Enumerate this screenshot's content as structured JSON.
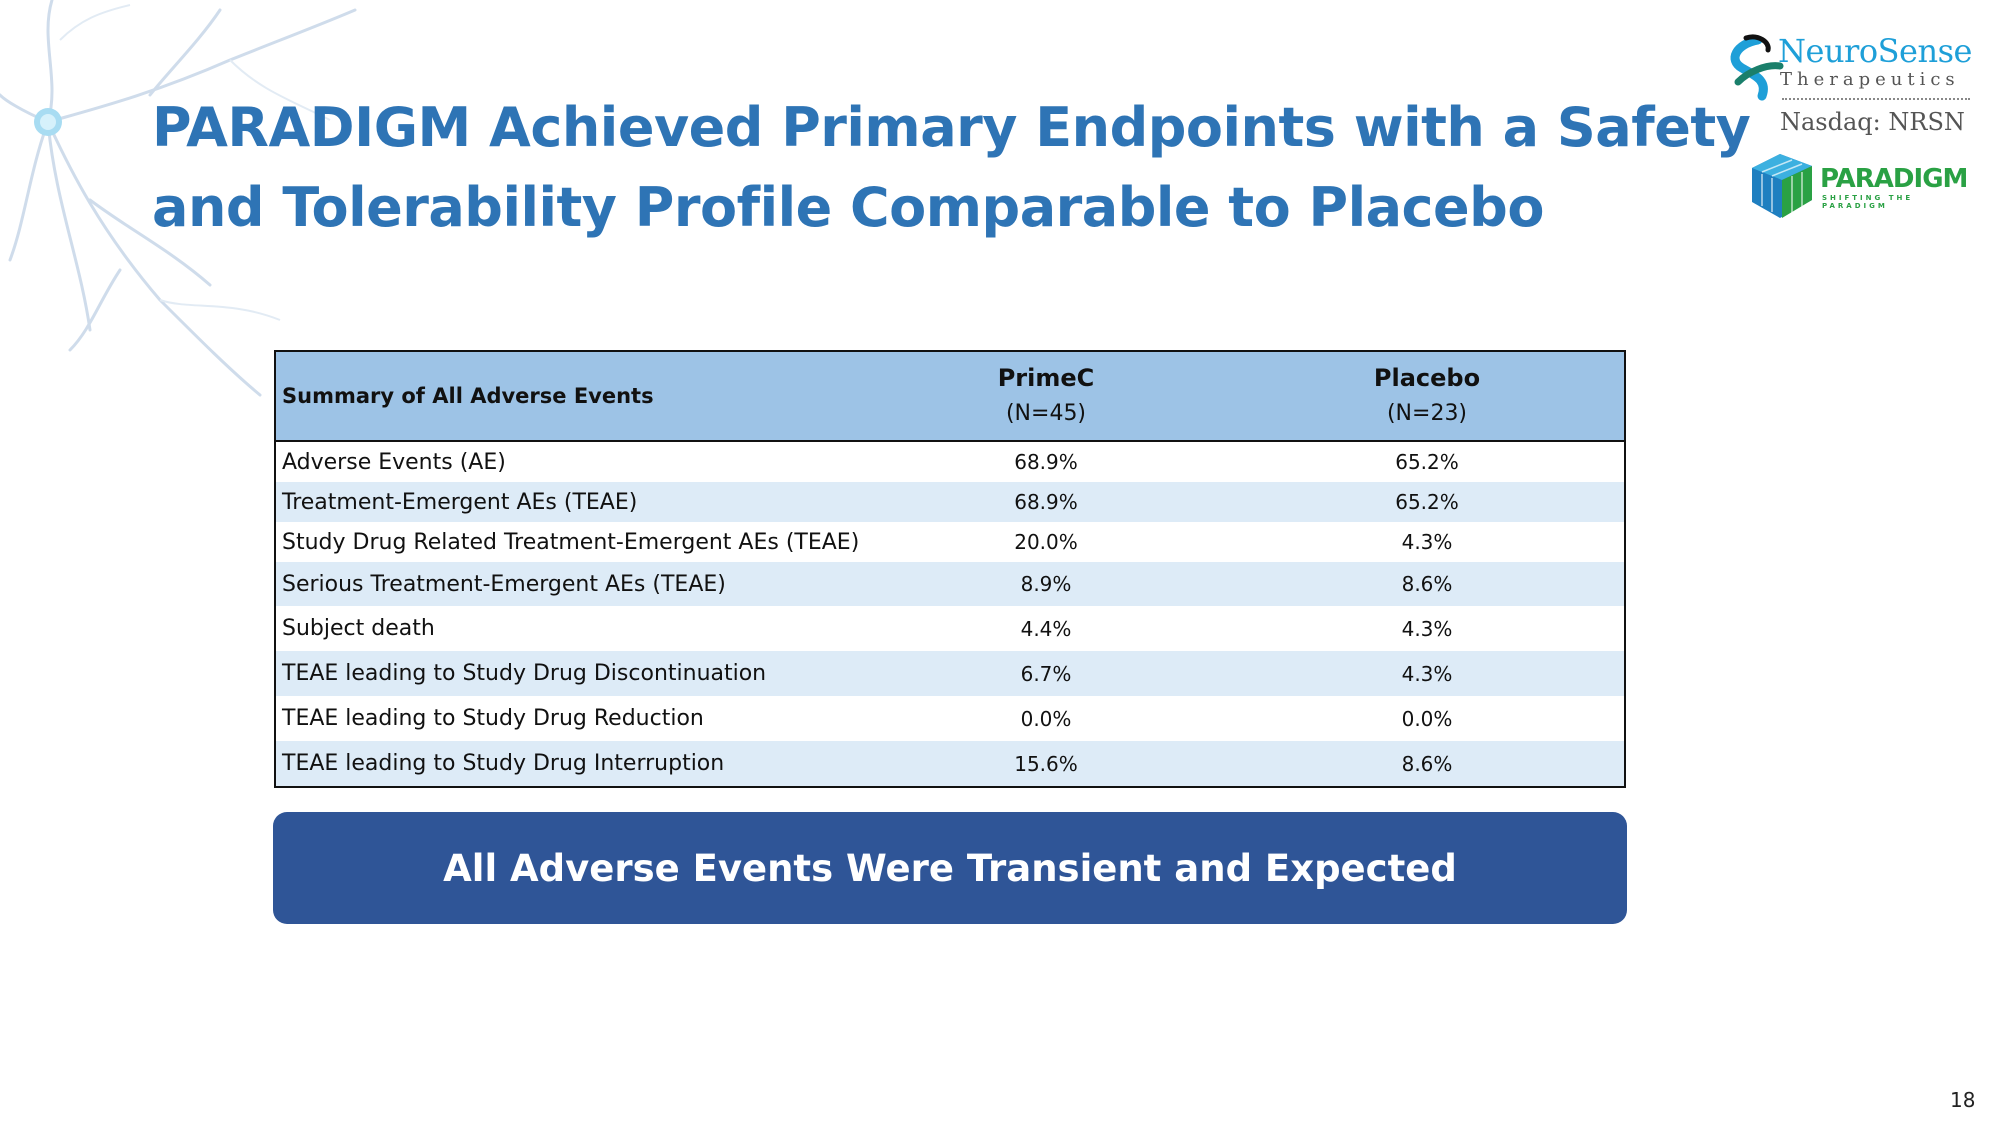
{
  "slide": {
    "title_lines": [
      "PARADIGM Achieved Primary Endpoints with a Safety",
      "and Tolerability Profile Comparable to Placebo"
    ],
    "page_number": "18",
    "colors": {
      "title": "#2e74b5",
      "table_header": "#9dc3e6",
      "table_alt_row": "#ddebf7",
      "banner": "#2f5597"
    }
  },
  "logos": {
    "neurosense_name": "NeuroSense",
    "neurosense_sub": "Therapeutics",
    "nasdaq": "Nasdaq: NRSN",
    "paradigm_name": "PARADIGM",
    "paradigm_tagline": "SHIFTING THE PARADIGM"
  },
  "table": {
    "header_label": "Summary of All Adverse Events",
    "columns": [
      {
        "name": "PrimeC",
        "n": "(N=45)"
      },
      {
        "name": "Placebo",
        "n": "(N=23)"
      }
    ],
    "rows": [
      {
        "label": "Adverse Events (AE)",
        "primec": "68.9%",
        "placebo": "65.2%"
      },
      {
        "label": "Treatment-Emergent AEs (TEAE)",
        "primec": "68.9%",
        "placebo": "65.2%"
      },
      {
        "label": "Study Drug Related Treatment-Emergent AEs (TEAE)",
        "primec": "20.0%",
        "placebo": "4.3%"
      },
      {
        "label": "Serious Treatment-Emergent AEs (TEAE)",
        "primec": "8.9%",
        "placebo": "8.6%"
      },
      {
        "label": "Subject death",
        "primec": "4.4%",
        "placebo": "4.3%"
      },
      {
        "label": "TEAE leading to Study Drug Discontinuation",
        "primec": "6.7%",
        "placebo": "4.3%"
      },
      {
        "label": "TEAE leading to Study Drug Reduction",
        "primec": "0.0%",
        "placebo": "0.0%"
      },
      {
        "label": "TEAE leading to Study Drug Interruption",
        "primec": "15.6%",
        "placebo": "8.6%"
      }
    ]
  },
  "banner": {
    "text": "All Adverse Events Were Transient and Expected"
  }
}
